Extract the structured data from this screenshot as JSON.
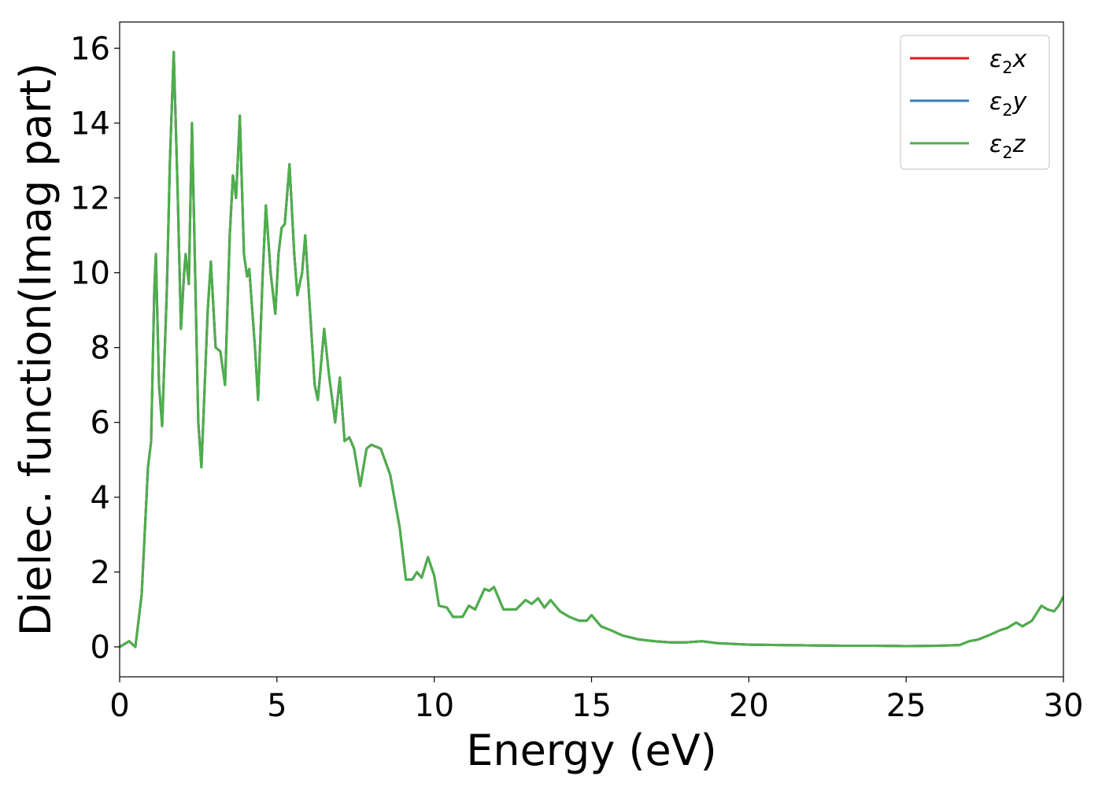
{
  "chart_data": {
    "type": "line",
    "title": "",
    "xlabel": "Energy (eV)",
    "ylabel": "Dielec. function(Imag part)",
    "xlim": [
      0,
      30
    ],
    "ylim": [
      -0.8,
      16.7
    ],
    "xticks": [
      0,
      5,
      10,
      15,
      20,
      25,
      30
    ],
    "yticks": [
      0,
      2,
      4,
      6,
      8,
      10,
      12,
      14,
      16
    ],
    "grid": false,
    "legend_position": "top-right",
    "series": [
      {
        "name": "ε₂x",
        "legend_main": "ε",
        "legend_sub": "2",
        "legend_tail": "x",
        "color": "#e41a1c",
        "points": [
          [
            0,
            0
          ],
          [
            0.3,
            0.15
          ],
          [
            0.5,
            0
          ],
          [
            0.7,
            1.4
          ],
          [
            0.9,
            4.8
          ],
          [
            1.0,
            5.5
          ],
          [
            1.1,
            9.5
          ],
          [
            1.15,
            10.5
          ],
          [
            1.25,
            7
          ],
          [
            1.35,
            5.9
          ],
          [
            1.5,
            9.5
          ],
          [
            1.6,
            13
          ],
          [
            1.72,
            15.9
          ],
          [
            1.85,
            12
          ],
          [
            1.95,
            8.5
          ],
          [
            2.05,
            10
          ],
          [
            2.1,
            10.5
          ],
          [
            2.2,
            9.7
          ],
          [
            2.3,
            14
          ],
          [
            2.4,
            10
          ],
          [
            2.5,
            6
          ],
          [
            2.6,
            4.8
          ],
          [
            2.8,
            9
          ],
          [
            2.9,
            10.3
          ],
          [
            3.05,
            8
          ],
          [
            3.2,
            7.9
          ],
          [
            3.35,
            7
          ],
          [
            3.5,
            11
          ],
          [
            3.6,
            12.6
          ],
          [
            3.7,
            12
          ],
          [
            3.82,
            14.2
          ],
          [
            3.95,
            10.5
          ],
          [
            4.05,
            9.9
          ],
          [
            4.12,
            10.1
          ],
          [
            4.3,
            8
          ],
          [
            4.4,
            6.6
          ],
          [
            4.55,
            10
          ],
          [
            4.65,
            11.8
          ],
          [
            4.8,
            10
          ],
          [
            4.95,
            8.9
          ],
          [
            5.05,
            10.5
          ],
          [
            5.15,
            11.2
          ],
          [
            5.25,
            11.3
          ],
          [
            5.4,
            12.9
          ],
          [
            5.55,
            10.5
          ],
          [
            5.65,
            9.4
          ],
          [
            5.8,
            10
          ],
          [
            5.9,
            11
          ],
          [
            6.05,
            9
          ],
          [
            6.2,
            7
          ],
          [
            6.3,
            6.6
          ],
          [
            6.5,
            8.5
          ],
          [
            6.65,
            7.3
          ],
          [
            6.85,
            6
          ],
          [
            7.0,
            7.2
          ],
          [
            7.15,
            5.5
          ],
          [
            7.3,
            5.6
          ],
          [
            7.45,
            5.3
          ],
          [
            7.65,
            4.3
          ],
          [
            7.85,
            5.3
          ],
          [
            8.0,
            5.4
          ],
          [
            8.3,
            5.3
          ],
          [
            8.6,
            4.6
          ],
          [
            8.9,
            3.2
          ],
          [
            9.1,
            1.8
          ],
          [
            9.3,
            1.8
          ],
          [
            9.45,
            2
          ],
          [
            9.6,
            1.85
          ],
          [
            9.8,
            2.4
          ],
          [
            10.0,
            1.9
          ],
          [
            10.15,
            1.1
          ],
          [
            10.4,
            1.05
          ],
          [
            10.6,
            0.8
          ],
          [
            10.9,
            0.8
          ],
          [
            11.1,
            1.1
          ],
          [
            11.3,
            1
          ],
          [
            11.6,
            1.55
          ],
          [
            11.75,
            1.5
          ],
          [
            11.9,
            1.6
          ],
          [
            12.2,
            1
          ],
          [
            12.6,
            1
          ],
          [
            12.9,
            1.25
          ],
          [
            13.1,
            1.15
          ],
          [
            13.3,
            1.3
          ],
          [
            13.5,
            1.05
          ],
          [
            13.7,
            1.25
          ],
          [
            14.0,
            0.95
          ],
          [
            14.3,
            0.8
          ],
          [
            14.6,
            0.7
          ],
          [
            14.85,
            0.7
          ],
          [
            15.0,
            0.85
          ],
          [
            15.3,
            0.55
          ],
          [
            15.6,
            0.45
          ],
          [
            16.0,
            0.3
          ],
          [
            16.5,
            0.2
          ],
          [
            17.0,
            0.15
          ],
          [
            17.5,
            0.12
          ],
          [
            18.0,
            0.12
          ],
          [
            18.5,
            0.15
          ],
          [
            19.0,
            0.1
          ],
          [
            20.0,
            0.06
          ],
          [
            21.0,
            0.05
          ],
          [
            22.0,
            0.04
          ],
          [
            23.0,
            0.03
          ],
          [
            24.0,
            0.03
          ],
          [
            25.0,
            0.02
          ],
          [
            26.0,
            0.03
          ],
          [
            26.7,
            0.05
          ],
          [
            27.0,
            0.15
          ],
          [
            27.3,
            0.2
          ],
          [
            27.6,
            0.3
          ],
          [
            28.0,
            0.45
          ],
          [
            28.2,
            0.5
          ],
          [
            28.5,
            0.65
          ],
          [
            28.7,
            0.55
          ],
          [
            29.0,
            0.7
          ],
          [
            29.3,
            1.1
          ],
          [
            29.5,
            1
          ],
          [
            29.7,
            0.95
          ],
          [
            29.85,
            1.1
          ],
          [
            30.0,
            1.35
          ]
        ]
      },
      {
        "name": "ε₂y",
        "legend_main": "ε",
        "legend_sub": "2",
        "legend_tail": "y",
        "color": "#377eb8",
        "same_as": "ε₂x"
      },
      {
        "name": "ε₂z",
        "legend_main": "ε",
        "legend_sub": "2",
        "legend_tail": "z",
        "color": "#4daf4a",
        "same_as": "ε₂x"
      }
    ]
  }
}
